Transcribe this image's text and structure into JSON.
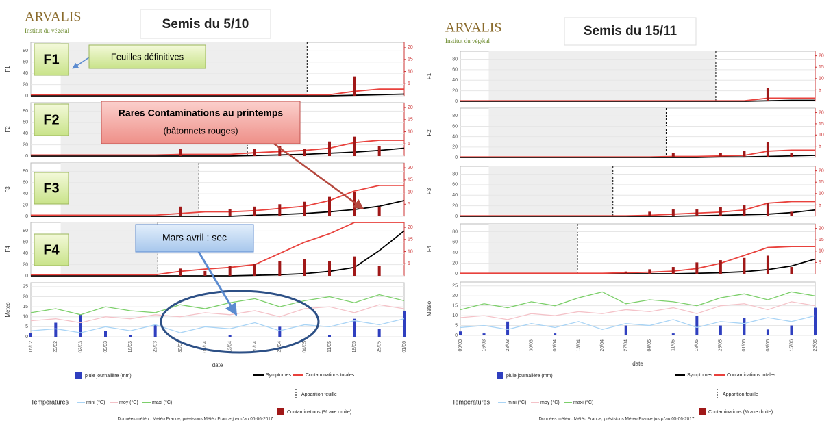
{
  "panels": [
    {
      "logo": {
        "name": "ARVALIS",
        "tagline": "Institut du végétal"
      },
      "title": "Semis du 5/10",
      "temperatures": "Températures",
      "leaf_appearance": "Apparition feuille",
      "source": "Données météo : Météo France, prévisions Météo France jusqu'au 05-06-2017"
    },
    {
      "logo": {
        "name": "ARVALIS",
        "tagline": "Institut du végétal"
      },
      "title": "Semis du 15/11",
      "temperatures": "Températures",
      "leaf_appearance": "Apparition feuille",
      "source": "Données météo : Météo France, prévisions Météo France jusqu'au 05-06-2017"
    }
  ],
  "annotations": {
    "leaf_boxes": [
      "F1",
      "F2",
      "F3",
      "F4"
    ],
    "final_leaves": "Feuilles définitives",
    "rare_bold": "Rares Contaminations au printemps",
    "rare_note": "(bâtonnets rouges)",
    "dry": "Mars avril : sec"
  },
  "chart_data": [
    {
      "type": "line",
      "y_label": "F1",
      "ylim": [
        0,
        95
      ],
      "yticks": [
        0,
        20,
        40,
        60,
        80
      ],
      "y2lim": [
        0,
        22
      ],
      "y2ticks": [
        5,
        10,
        15,
        20
      ],
      "series": [
        {
          "name": "Symptomes",
          "color": "#000000",
          "values": [
            0,
            0,
            0,
            0,
            0,
            0,
            0,
            0,
            0,
            0,
            0,
            0,
            0,
            1,
            2,
            3
          ]
        },
        {
          "name": "Contaminations totales",
          "color": "#e8413c",
          "values": [
            2,
            2,
            2,
            2,
            2,
            2,
            2,
            2,
            2,
            2,
            2,
            2,
            2,
            8,
            12,
            12
          ]
        },
        {
          "name": "Contaminations (% axe droite)",
          "type": "bar",
          "axis": "y2",
          "color": "#a01818",
          "values": [
            0,
            0,
            0,
            0,
            0,
            0,
            0,
            0,
            0,
            0,
            0,
            0,
            0,
            8,
            0,
            0
          ]
        }
      ]
    },
    {
      "type": "line",
      "y_label": "F2",
      "ylim": [
        0,
        95
      ],
      "yticks": [
        0,
        20,
        40,
        60,
        80
      ],
      "y2lim": [
        0,
        22
      ],
      "y2ticks": [
        5,
        10,
        15,
        20
      ],
      "series": [
        {
          "name": "Symptomes",
          "color": "#000000",
          "values": [
            0,
            0,
            0,
            0,
            0,
            0,
            0,
            0,
            0,
            1,
            2,
            3,
            5,
            7,
            10,
            14
          ]
        },
        {
          "name": "Contaminations totales",
          "color": "#e8413c",
          "values": [
            2,
            2,
            2,
            2,
            2,
            2,
            3,
            3,
            3,
            6,
            8,
            10,
            14,
            24,
            28,
            28
          ]
        },
        {
          "name": "Contaminations (% axe droite)",
          "type": "bar",
          "axis": "y2",
          "color": "#a01818",
          "values": [
            0,
            0,
            0,
            0,
            0,
            0,
            3,
            0,
            0,
            3,
            4,
            3,
            6,
            8,
            4,
            0
          ]
        }
      ]
    },
    {
      "type": "line",
      "y_label": "F3",
      "ylim": [
        0,
        95
      ],
      "yticks": [
        0,
        20,
        40,
        60,
        80
      ],
      "y2lim": [
        0,
        22
      ],
      "y2ticks": [
        5,
        10,
        15,
        20
      ],
      "series": [
        {
          "name": "Symptomes",
          "color": "#000000",
          "values": [
            0,
            0,
            0,
            0,
            0,
            0,
            0,
            0,
            0,
            2,
            3,
            5,
            8,
            12,
            18,
            28
          ]
        },
        {
          "name": "Contaminations totales",
          "color": "#e8413c",
          "values": [
            2,
            2,
            2,
            2,
            2,
            2,
            5,
            8,
            8,
            10,
            14,
            18,
            28,
            45,
            55,
            55
          ]
        },
        {
          "name": "Contaminations (% axe droite)",
          "type": "bar",
          "axis": "y2",
          "color": "#a01818",
          "values": [
            0,
            0,
            0,
            0,
            0,
            0,
            4,
            0,
            3,
            4,
            5,
            6,
            8,
            10,
            4,
            0
          ]
        }
      ]
    },
    {
      "type": "line",
      "y_label": "F4",
      "ylim": [
        0,
        95
      ],
      "yticks": [
        0,
        20,
        40,
        60,
        80
      ],
      "y2lim": [
        0,
        22
      ],
      "y2ticks": [
        5,
        10,
        15,
        20
      ],
      "series": [
        {
          "name": "Symptomes",
          "color": "#000000",
          "values": [
            0,
            0,
            0,
            0,
            0,
            0,
            0,
            0,
            0,
            1,
            2,
            4,
            8,
            15,
            45,
            80
          ]
        },
        {
          "name": "Contaminations totales",
          "color": "#e8413c",
          "values": [
            2,
            2,
            2,
            2,
            2,
            2,
            8,
            12,
            15,
            20,
            40,
            60,
            75,
            95,
            95,
            95
          ]
        },
        {
          "name": "Contaminations (% axe droite)",
          "type": "bar",
          "axis": "y2",
          "color": "#a01818",
          "values": [
            0,
            0,
            0,
            0,
            0,
            0,
            3,
            2,
            4,
            5,
            6,
            7,
            6,
            8,
            4,
            0
          ]
        }
      ]
    },
    {
      "type": "meteo",
      "y_label": "Meteo",
      "x_label": "date",
      "categories": [
        "16/02",
        "23/02",
        "02/03",
        "09/03",
        "16/03",
        "23/03",
        "30/03",
        "06/04",
        "13/04",
        "20/04",
        "27/04",
        "04/05",
        "11/05",
        "18/05",
        "25/05",
        "01/06"
      ],
      "ylim": [
        0,
        27
      ],
      "yticks": [
        0,
        5,
        10,
        15,
        20,
        25
      ],
      "series": [
        {
          "name": "pluie journalière (mm)",
          "type": "bar",
          "color": "#2f3fbf",
          "values": [
            2,
            7,
            11,
            3,
            1,
            6,
            0,
            0,
            1,
            0,
            5,
            0,
            1,
            9,
            4,
            13
          ]
        },
        {
          "name": "mini (°C)",
          "color": "#a9d4f5",
          "values": [
            3,
            4,
            2,
            5,
            3,
            6,
            2,
            5,
            4,
            7,
            3,
            6,
            5,
            8,
            6,
            9
          ]
        },
        {
          "name": "moy (°C)",
          "color": "#f4c2c8",
          "values": [
            8,
            9,
            7,
            10,
            9,
            11,
            10,
            12,
            11,
            13,
            10,
            14,
            15,
            12,
            16,
            14
          ]
        },
        {
          "name": "maxi (°C)",
          "color": "#7ccf6a",
          "values": [
            12,
            14,
            11,
            15,
            13,
            12,
            16,
            14,
            17,
            19,
            15,
            18,
            20,
            17,
            21,
            18
          ]
        }
      ]
    },
    {
      "type": "line",
      "y_label": "F1",
      "ylim": [
        0,
        95
      ],
      "yticks": [
        0,
        20,
        40,
        60,
        80
      ],
      "y2lim": [
        0,
        22
      ],
      "y2ticks": [
        5,
        10,
        15,
        20
      ],
      "series": [
        {
          "name": "Symptomes",
          "color": "#000000",
          "values": [
            0,
            0,
            0,
            0,
            0,
            0,
            0,
            0,
            0,
            0,
            0,
            0,
            0,
            1,
            2,
            2
          ]
        },
        {
          "name": "Contaminations totales",
          "color": "#e8413c",
          "values": [
            1,
            1,
            1,
            1,
            1,
            1,
            1,
            1,
            1,
            1,
            1,
            1,
            1,
            6,
            6,
            6
          ]
        },
        {
          "name": "Contaminations (% axe droite)",
          "type": "bar",
          "axis": "y2",
          "color": "#a01818",
          "values": [
            0,
            0,
            0,
            0,
            0,
            0,
            0,
            0,
            0,
            0,
            0,
            0,
            0,
            6,
            0,
            0
          ]
        }
      ]
    },
    {
      "type": "line",
      "y_label": "F2",
      "ylim": [
        0,
        95
      ],
      "yticks": [
        0,
        20,
        40,
        60,
        80
      ],
      "y2lim": [
        0,
        22
      ],
      "y2ticks": [
        5,
        10,
        15,
        20
      ],
      "series": [
        {
          "name": "Symptomes",
          "color": "#000000",
          "values": [
            0,
            0,
            0,
            0,
            0,
            0,
            0,
            0,
            0,
            0,
            0,
            1,
            1,
            2,
            3,
            4
          ]
        },
        {
          "name": "Contaminations totales",
          "color": "#e8413c",
          "values": [
            1,
            1,
            1,
            1,
            1,
            1,
            1,
            1,
            1,
            2,
            2,
            3,
            4,
            12,
            14,
            14
          ]
        },
        {
          "name": "Contaminations (% axe droite)",
          "type": "bar",
          "axis": "y2",
          "color": "#a01818",
          "values": [
            0,
            0,
            0,
            0,
            0,
            0,
            0,
            0,
            0,
            2,
            0,
            2,
            3,
            7,
            2,
            0
          ]
        }
      ]
    },
    {
      "type": "line",
      "y_label": "F3",
      "ylim": [
        0,
        95
      ],
      "yticks": [
        0,
        20,
        40,
        60,
        80
      ],
      "y2lim": [
        0,
        22
      ],
      "y2ticks": [
        5,
        10,
        15,
        20
      ],
      "series": [
        {
          "name": "Symptomes",
          "color": "#000000",
          "values": [
            0,
            0,
            0,
            0,
            0,
            0,
            0,
            0,
            0,
            0,
            1,
            2,
            3,
            4,
            7,
            12
          ]
        },
        {
          "name": "Contaminations totales",
          "color": "#e8413c",
          "values": [
            1,
            1,
            1,
            1,
            1,
            1,
            1,
            1,
            2,
            4,
            6,
            8,
            12,
            25,
            28,
            28
          ]
        },
        {
          "name": "Contaminations (% axe droite)",
          "type": "bar",
          "axis": "y2",
          "color": "#a01818",
          "values": [
            0,
            0,
            0,
            0,
            0,
            0,
            0,
            0,
            2,
            3,
            3,
            4,
            5,
            6,
            2,
            0
          ]
        }
      ]
    },
    {
      "type": "line",
      "y_label": "F4",
      "ylim": [
        0,
        95
      ],
      "yticks": [
        0,
        20,
        40,
        60,
        80
      ],
      "y2lim": [
        0,
        22
      ],
      "y2ticks": [
        5,
        10,
        15,
        20
      ],
      "series": [
        {
          "name": "Symptomes",
          "color": "#000000",
          "values": [
            0,
            0,
            0,
            0,
            0,
            0,
            0,
            0,
            0,
            0,
            1,
            2,
            4,
            8,
            15,
            28
          ]
        },
        {
          "name": "Contaminations totales",
          "color": "#e8413c",
          "values": [
            1,
            1,
            1,
            1,
            1,
            1,
            1,
            2,
            3,
            5,
            10,
            20,
            35,
            50,
            52,
            52
          ]
        },
        {
          "name": "Contaminations (% axe droite)",
          "type": "bar",
          "axis": "y2",
          "color": "#a01818",
          "values": [
            0,
            0,
            0,
            0,
            0,
            0,
            0,
            1,
            2,
            3,
            5,
            6,
            7,
            8,
            3,
            0
          ]
        }
      ]
    },
    {
      "type": "meteo",
      "y_label": "Meteo",
      "x_label": "date",
      "categories": [
        "09/03",
        "16/03",
        "23/03",
        "30/03",
        "06/04",
        "13/04",
        "20/04",
        "27/04",
        "04/05",
        "11/05",
        "18/05",
        "25/05",
        "01/06",
        "08/06",
        "15/06",
        "22/06"
      ],
      "ylim": [
        0,
        27
      ],
      "yticks": [
        0,
        5,
        10,
        15,
        20,
        25
      ],
      "series": [
        {
          "name": "pluie journalière (mm)",
          "type": "bar",
          "color": "#2f3fbf",
          "values": [
            2,
            1,
            7,
            0,
            1,
            0,
            0,
            5,
            0,
            1,
            10,
            5,
            9,
            3,
            5,
            14
          ]
        },
        {
          "name": "mini (°C)",
          "color": "#a9d4f5",
          "values": [
            4,
            5,
            3,
            6,
            4,
            7,
            3,
            6,
            5,
            8,
            4,
            7,
            6,
            9,
            7,
            10
          ]
        },
        {
          "name": "moy (°C)",
          "color": "#f4c2c8",
          "values": [
            9,
            10,
            8,
            11,
            10,
            12,
            11,
            13,
            12,
            14,
            11,
            15,
            16,
            13,
            17,
            15
          ]
        },
        {
          "name": "maxi (°C)",
          "color": "#7ccf6a",
          "values": [
            13,
            16,
            14,
            17,
            15,
            19,
            22,
            16,
            18,
            17,
            15,
            19,
            21,
            18,
            22,
            20
          ]
        }
      ]
    }
  ]
}
